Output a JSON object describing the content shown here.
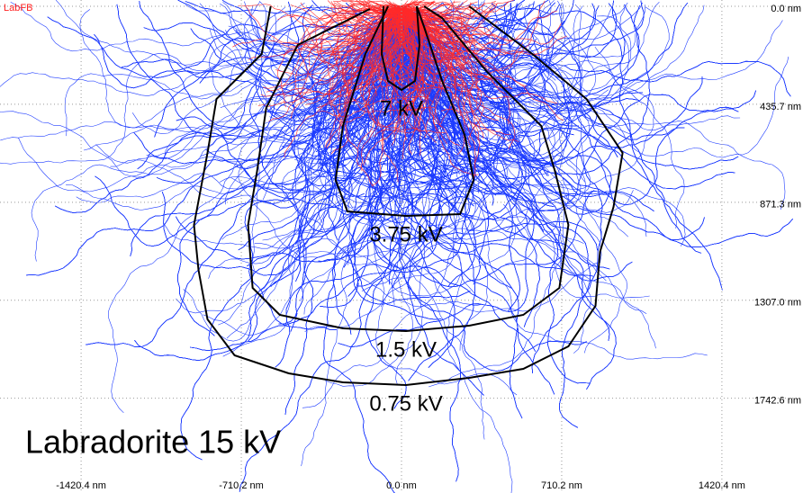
{
  "chart_data": {
    "type": "trajectory",
    "title": "Labradorite 15 kV",
    "label": "LabFB",
    "xlim": [
      -1780,
      1780
    ],
    "ylim": [
      -28,
      2164
    ],
    "xticks": [
      {
        "value": -1420.4,
        "label": "-1420.4 nm"
      },
      {
        "value": -710.2,
        "label": "-710.2 nm"
      },
      {
        "value": 0,
        "label": "0.0 nm"
      },
      {
        "value": 710.2,
        "label": "710.2 nm"
      },
      {
        "value": 1420.4,
        "label": "1420.4 nm"
      }
    ],
    "yticks": [
      {
        "value": 0,
        "label": "0.0 nm"
      },
      {
        "value": 435.7,
        "label": "435.7 nm"
      },
      {
        "value": 871.3,
        "label": "871.3 nm"
      },
      {
        "value": 1307.0,
        "label": "1307.0 nm"
      },
      {
        "value": 1742.6,
        "label": "1742.6 nm"
      }
    ],
    "grid": true,
    "series": [
      {
        "name": "0.75 kV",
        "color": "#000000",
        "x": [
          -580,
          -620,
          -820,
          -860,
          -920,
          -900,
          -860,
          -740,
          -500,
          -260,
          20,
          300,
          540,
          740,
          860,
          880,
          940,
          980,
          820,
          580,
          300
        ],
        "values": [
          0,
          212,
          412,
          652,
          972,
          1172,
          1392,
          1552,
          1632,
          1672,
          1684,
          1652,
          1612,
          1512,
          1332,
          1092,
          892,
          652,
          412,
          212,
          0
        ]
      },
      {
        "name": "1.5 kV",
        "color": "#000000",
        "x": [
          -140,
          -460,
          -600,
          -640,
          -680,
          -660,
          -540,
          -260,
          20,
          300,
          540,
          700,
          740,
          680,
          620,
          380,
          180,
          100
        ],
        "values": [
          12,
          172,
          452,
          732,
          972,
          1252,
          1372,
          1432,
          1444,
          1420,
          1372,
          1252,
          972,
          732,
          532,
          292,
          52,
          0
        ]
      },
      {
        "name": "3.75 kV",
        "color": "#000000",
        "x": [
          -60,
          -160,
          -260,
          -292,
          -240,
          20,
          260,
          320,
          280,
          180,
          100,
          68
        ],
        "values": [
          0,
          212,
          532,
          772,
          912,
          932,
          924,
          772,
          572,
          332,
          92,
          0
        ]
      },
      {
        "name": "7 kV",
        "color": "#000000",
        "x": [
          -80,
          -88,
          -60,
          0,
          60,
          80,
          68
        ],
        "values": [
          0,
          212,
          332,
          372,
          332,
          172,
          0
        ]
      }
    ]
  }
}
